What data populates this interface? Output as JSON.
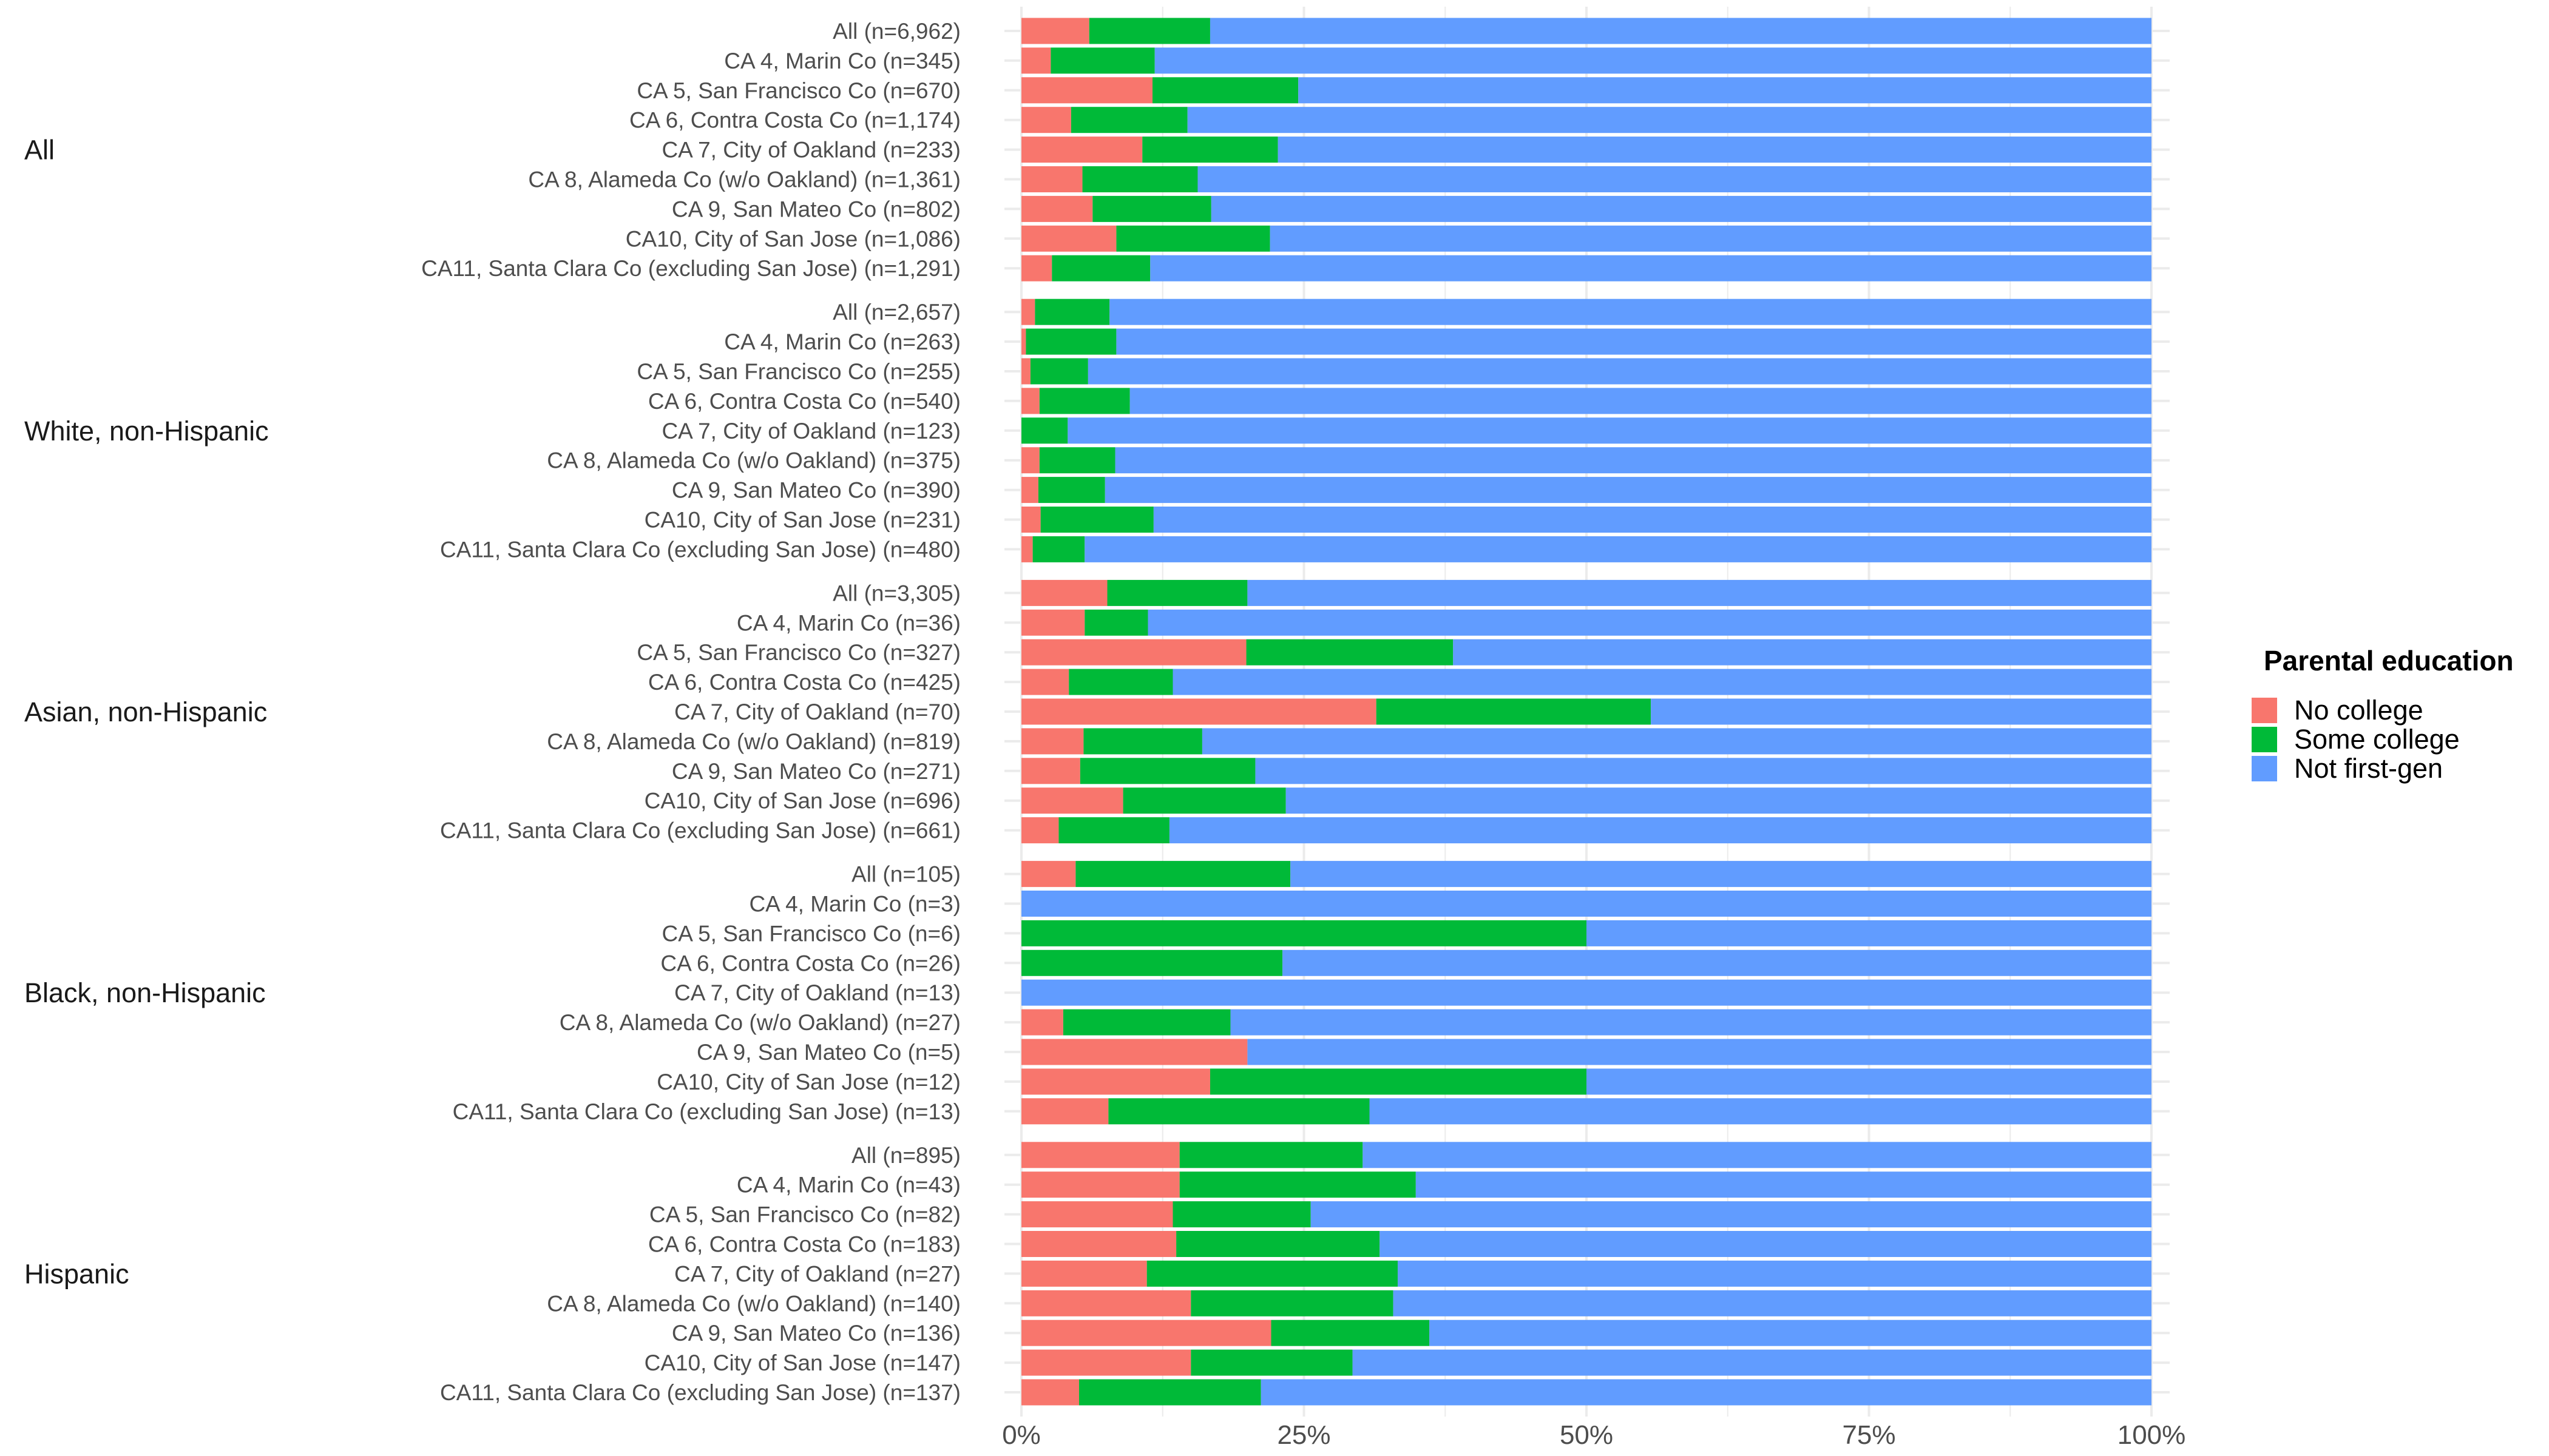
{
  "chart_data": {
    "type": "bar",
    "orientation": "horizontal",
    "stacked": "percent",
    "title": "",
    "xlabel": "",
    "ylabel": "",
    "xlim": [
      0,
      100
    ],
    "x_ticks": [
      "0%",
      "25%",
      "50%",
      "75%",
      "100%"
    ],
    "grid": true,
    "legend": {
      "title": "Parental education",
      "placement": "right",
      "entries": [
        {
          "name": "No college",
          "color": "#F8766D"
        },
        {
          "name": "Some college",
          "color": "#00BA38"
        },
        {
          "name": "Not first-gen",
          "color": "#619CFF"
        }
      ]
    },
    "series_order": [
      "No college",
      "Some college",
      "Not first-gen"
    ],
    "groups": [
      {
        "label": "All",
        "rows": [
          {
            "label": "All (n=6,962)",
            "values": [
              6.0,
              10.7,
              83.3
            ]
          },
          {
            "label": "CA 4, Marin Co (n=345)",
            "values": [
              2.6,
              9.2,
              88.2
            ]
          },
          {
            "label": "CA 5, San Francisco Co (n=670)",
            "values": [
              11.6,
              12.9,
              75.5
            ]
          },
          {
            "label": "CA 6, Contra Costa Co (n=1,174)",
            "values": [
              4.4,
              10.3,
              85.3
            ]
          },
          {
            "label": "CA 7, City of Oakland (n=233)",
            "values": [
              10.7,
              12.0,
              77.3
            ]
          },
          {
            "label": "CA 8, Alameda Co (w/o Oakland) (n=1,361)",
            "values": [
              5.4,
              10.2,
              84.4
            ]
          },
          {
            "label": "CA 9, San Mateo Co (n=802)",
            "values": [
              6.3,
              10.5,
              83.2
            ]
          },
          {
            "label": "CA10, City of San Jose (n=1,086)",
            "values": [
              8.4,
              13.6,
              78.0
            ]
          },
          {
            "label": "CA11, Santa Clara Co (excluding San Jose) (n=1,291)",
            "values": [
              2.7,
              8.7,
              88.6
            ]
          }
        ]
      },
      {
        "label": "White, non-Hispanic",
        "rows": [
          {
            "label": "All (n=2,657)",
            "values": [
              1.2,
              6.6,
              92.2
            ]
          },
          {
            "label": "CA 4, Marin Co (n=263)",
            "values": [
              0.4,
              8.0,
              91.6
            ]
          },
          {
            "label": "CA 5, San Francisco Co (n=255)",
            "values": [
              0.8,
              5.1,
              94.1
            ]
          },
          {
            "label": "CA 6, Contra Costa Co (n=540)",
            "values": [
              1.6,
              8.0,
              90.4
            ]
          },
          {
            "label": "CA 7, City of Oakland (n=123)",
            "values": [
              0.0,
              4.1,
              95.9
            ]
          },
          {
            "label": "CA 8, Alameda Co (w/o Oakland) (n=375)",
            "values": [
              1.6,
              6.7,
              91.7
            ]
          },
          {
            "label": "CA 9, San Mateo Co (n=390)",
            "values": [
              1.5,
              5.9,
              92.6
            ]
          },
          {
            "label": "CA10, City of San Jose (n=231)",
            "values": [
              1.7,
              10.0,
              88.3
            ]
          },
          {
            "label": "CA11, Santa Clara Co (excluding San Jose) (n=480)",
            "values": [
              1.0,
              4.6,
              94.4
            ]
          }
        ]
      },
      {
        "label": "Asian, non-Hispanic",
        "rows": [
          {
            "label": "All (n=3,305)",
            "values": [
              7.6,
              12.4,
              80.0
            ]
          },
          {
            "label": "CA 4, Marin Co (n=36)",
            "values": [
              5.6,
              5.6,
              88.8
            ]
          },
          {
            "label": "CA 5, San Francisco Co (n=327)",
            "values": [
              19.9,
              18.3,
              61.8
            ]
          },
          {
            "label": "CA 6, Contra Costa Co (n=425)",
            "values": [
              4.2,
              9.2,
              86.6
            ]
          },
          {
            "label": "CA 7, City of Oakland (n=70)",
            "values": [
              31.4,
              24.3,
              44.3
            ]
          },
          {
            "label": "CA 8, Alameda Co (w/o Oakland) (n=819)",
            "values": [
              5.5,
              10.5,
              84.0
            ]
          },
          {
            "label": "CA 9, San Mateo Co (n=271)",
            "values": [
              5.2,
              15.5,
              79.3
            ]
          },
          {
            "label": "CA10, City of San Jose (n=696)",
            "values": [
              9.0,
              14.4,
              76.6
            ]
          },
          {
            "label": "CA11, Santa Clara Co (excluding San Jose) (n=661)",
            "values": [
              3.3,
              9.8,
              86.9
            ]
          }
        ]
      },
      {
        "label": "Black, non-Hispanic",
        "rows": [
          {
            "label": "All (n=105)",
            "values": [
              4.8,
              19.0,
              76.2
            ]
          },
          {
            "label": "CA 4, Marin Co (n=3)",
            "values": [
              0.0,
              0.0,
              100.0
            ]
          },
          {
            "label": "CA 5, San Francisco Co (n=6)",
            "values": [
              0.0,
              50.0,
              50.0
            ]
          },
          {
            "label": "CA 6, Contra Costa Co (n=26)",
            "values": [
              0.0,
              23.1,
              76.9
            ]
          },
          {
            "label": "CA 7, City of Oakland (n=13)",
            "values": [
              0.0,
              0.0,
              100.0
            ]
          },
          {
            "label": "CA 8, Alameda Co (w/o Oakland) (n=27)",
            "values": [
              3.7,
              14.8,
              81.5
            ]
          },
          {
            "label": "CA 9, San Mateo Co (n=5)",
            "values": [
              20.0,
              0.0,
              80.0
            ]
          },
          {
            "label": "CA10, City of San Jose (n=12)",
            "values": [
              16.7,
              33.3,
              50.0
            ]
          },
          {
            "label": "CA11, Santa Clara Co (excluding San Jose) (n=13)",
            "values": [
              7.7,
              23.1,
              69.2
            ]
          }
        ]
      },
      {
        "label": "Hispanic",
        "rows": [
          {
            "label": "All (n=895)",
            "values": [
              14.0,
              16.2,
              69.8
            ]
          },
          {
            "label": "CA 4, Marin Co (n=43)",
            "values": [
              14.0,
              20.9,
              65.1
            ]
          },
          {
            "label": "CA 5, San Francisco Co (n=82)",
            "values": [
              13.4,
              12.2,
              74.4
            ]
          },
          {
            "label": "CA 6, Contra Costa Co (n=183)",
            "values": [
              13.7,
              18.0,
              68.3
            ]
          },
          {
            "label": "CA 7, City of Oakland (n=27)",
            "values": [
              11.1,
              22.2,
              66.7
            ]
          },
          {
            "label": "CA 8, Alameda Co (w/o Oakland) (n=140)",
            "values": [
              15.0,
              17.9,
              67.1
            ]
          },
          {
            "label": "CA 9, San Mateo Co (n=136)",
            "values": [
              22.1,
              14.0,
              63.9
            ]
          },
          {
            "label": "CA10, City of San Jose (n=147)",
            "values": [
              15.0,
              14.3,
              70.7
            ]
          },
          {
            "label": "CA11, Santa Clara Co (excluding San Jose) (n=137)",
            "values": [
              5.1,
              16.1,
              78.8
            ]
          }
        ]
      }
    ]
  }
}
